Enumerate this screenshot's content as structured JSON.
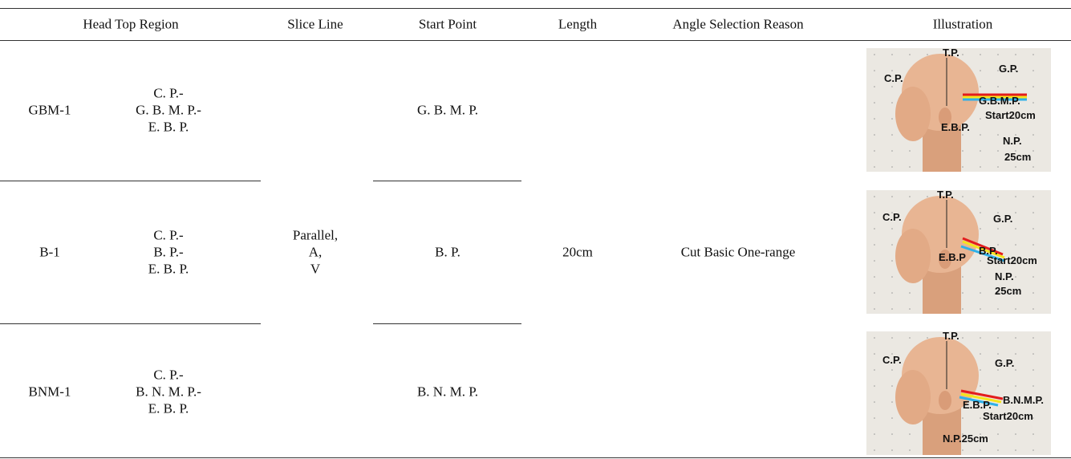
{
  "table": {
    "headers": [
      "Head Top Region",
      "Slice Line",
      "Start Point",
      "Length",
      "Angle Selection Reason",
      "Illustration"
    ],
    "rows": [
      {
        "code": "GBM-1",
        "region": [
          "C. P.-",
          "G. B. M. P.-",
          "E. B. P."
        ],
        "start_point": "G. B. M. P.",
        "illustration": [
          "T.P.",
          "G.P.",
          "C.P.",
          "G.B.M.P.",
          "Start20cm",
          "E.B.P.",
          "N.P.",
          "25cm"
        ]
      },
      {
        "code": "B-1",
        "region": [
          "C. P.-",
          "B. P.-",
          "E. B. P."
        ],
        "start_point": "B. P.",
        "illustration": [
          "T.P.",
          "C.P.",
          "G.P.",
          "B.P.",
          "E.B.P",
          "Start20cm",
          "N.P.",
          "25cm"
        ]
      },
      {
        "code": "BNM-1",
        "region": [
          "C. P.-",
          "B. N. M. P.-",
          "E. B. P."
        ],
        "start_point": "B. N. M. P.",
        "illustration": [
          "T.P.",
          "C.P.",
          "G.P.",
          "E.B.P.",
          "B.N.M.P.",
          "Start20cm",
          "N.P.25cm"
        ]
      }
    ],
    "slice_line": [
      "Parallel,",
      "A,",
      "V"
    ],
    "length": "20cm",
    "reason": "Cut Basic One-range"
  }
}
